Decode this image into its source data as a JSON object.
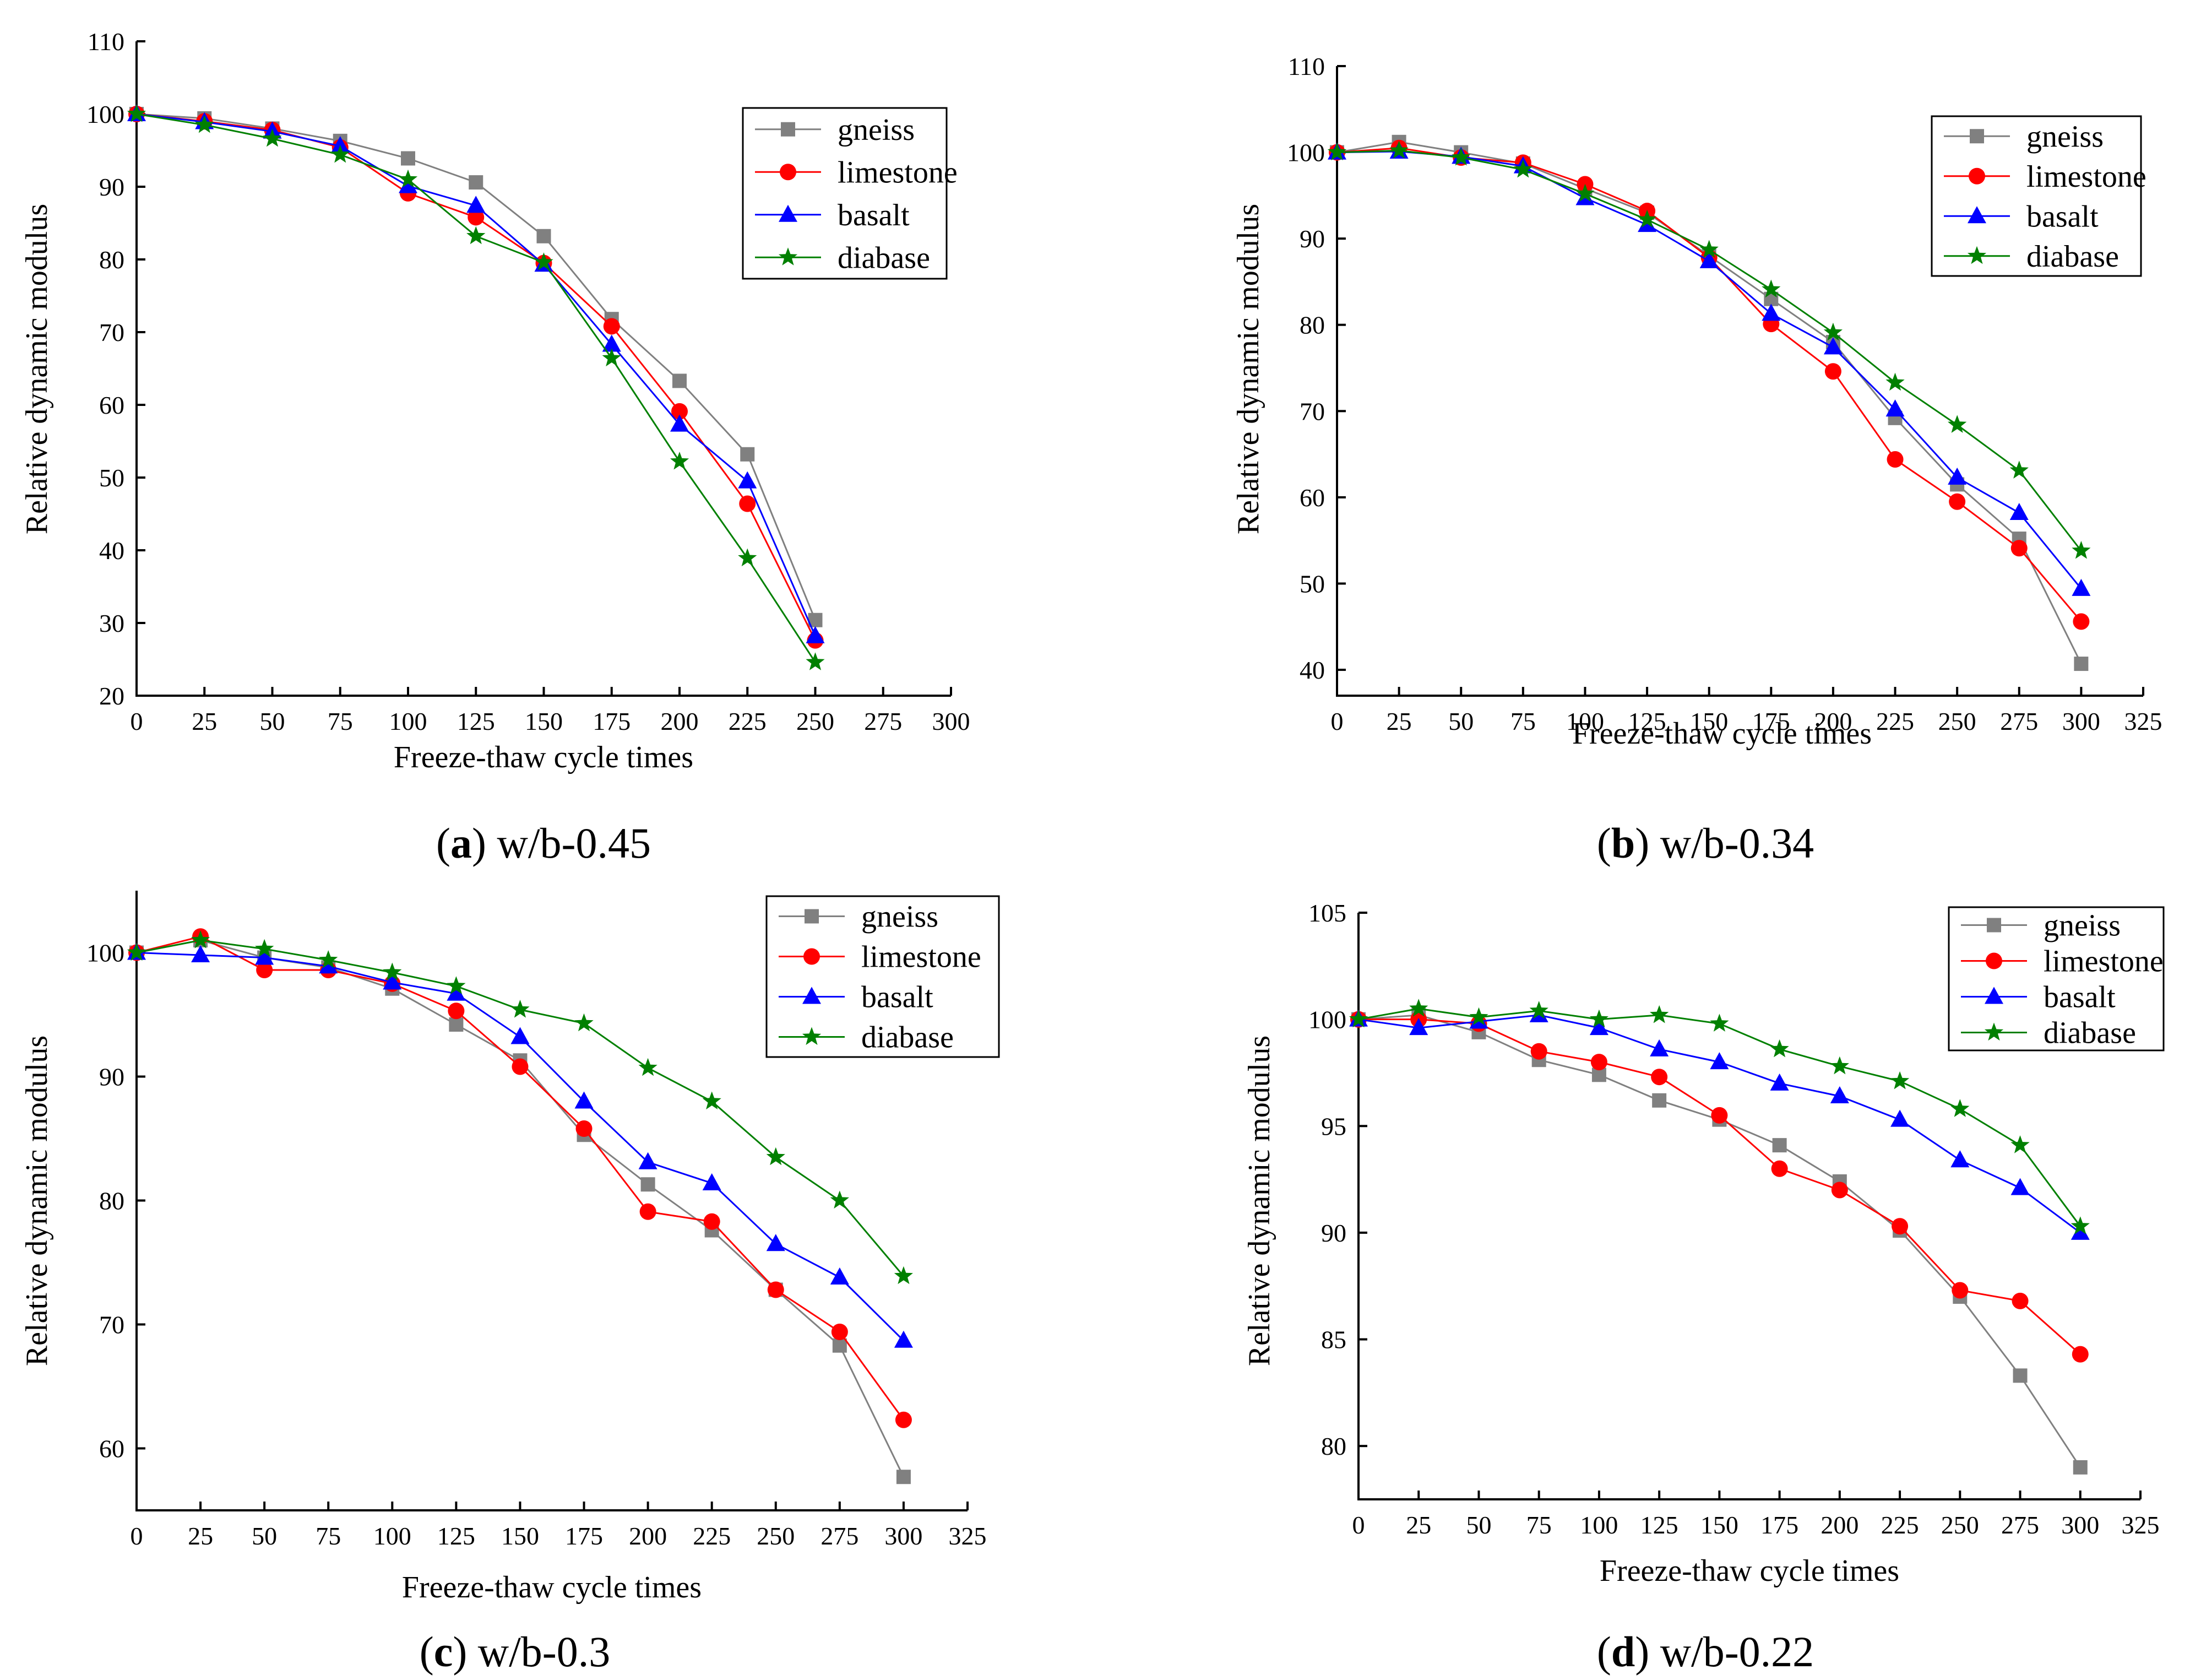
{
  "colors": {
    "gneiss": "#808080",
    "limestone": "#ff0000",
    "basalt": "#0000ff",
    "diabase": "#008000"
  },
  "markers": {
    "gneiss": "square",
    "limestone": "circle",
    "basalt": "triangle",
    "diabase": "star"
  },
  "chart_data": [
    {
      "type": "line",
      "panel": "a",
      "caption_letter": "a",
      "caption_text": "w/b-0.45",
      "title": "",
      "xlabel": "Freeze-thaw cycle times",
      "ylabel": "Relative dynamic modulus",
      "xlim": [
        0,
        300
      ],
      "ylim": [
        20,
        110
      ],
      "xticks": [
        0,
        25,
        50,
        75,
        100,
        125,
        150,
        175,
        200,
        225,
        250,
        275,
        300
      ],
      "yticks": [
        20,
        30,
        40,
        50,
        60,
        70,
        80,
        90,
        100,
        110
      ],
      "grid": false,
      "legend_position": "top-right",
      "x": [
        0,
        25,
        50,
        75,
        100,
        125,
        150,
        175,
        200,
        225,
        250
      ],
      "series": [
        {
          "name": "gneiss",
          "values": [
            100,
            99.4,
            98,
            96.3,
            93.9,
            90.6,
            83.2,
            71.8,
            63.3,
            53.2,
            30.4
          ]
        },
        {
          "name": "limestone",
          "values": [
            100,
            99,
            97.8,
            95.4,
            89.1,
            85.8,
            79.5,
            70.8,
            59.1,
            46.4,
            27.6
          ]
        },
        {
          "name": "basalt",
          "values": [
            100,
            98.9,
            97.6,
            95.6,
            90.1,
            87.4,
            79.3,
            68.3,
            57.3,
            49.5,
            28.2
          ]
        },
        {
          "name": "diabase",
          "values": [
            100,
            98.5,
            96.6,
            94.4,
            91,
            83.2,
            79.6,
            66.4,
            52.2,
            38.9,
            24.6
          ]
        }
      ]
    },
    {
      "type": "line",
      "panel": "b",
      "caption_letter": "b",
      "caption_text": "w/b-0.34",
      "title": "",
      "xlabel": "Freeze-thaw cycle times",
      "ylabel": "Relative dynamic modulus",
      "xlim": [
        0,
        325
      ],
      "ylim": [
        37,
        110
      ],
      "xticks": [
        0,
        25,
        50,
        75,
        100,
        125,
        150,
        175,
        200,
        225,
        250,
        275,
        300,
        325
      ],
      "yticks": [
        40,
        50,
        60,
        70,
        80,
        90,
        100,
        110
      ],
      "grid": false,
      "legend_position": "top-right",
      "x": [
        0,
        25,
        50,
        75,
        100,
        125,
        150,
        175,
        200,
        225,
        250,
        275,
        300
      ],
      "series": [
        {
          "name": "gneiss",
          "values": [
            100,
            101.2,
            100,
            98.7,
            95.8,
            93,
            88,
            83,
            78,
            69.2,
            61.5,
            55.2,
            40.7
          ]
        },
        {
          "name": "limestone",
          "values": [
            100,
            100.5,
            99.4,
            98.8,
            96.3,
            93.2,
            87.8,
            80.1,
            74.6,
            64.4,
            59.5,
            54.1,
            45.6
          ]
        },
        {
          "name": "basalt",
          "values": [
            100,
            100.1,
            99.5,
            98.4,
            94.7,
            91.6,
            87.4,
            81.3,
            77.4,
            70.2,
            62.3,
            58.2,
            49.4
          ]
        },
        {
          "name": "diabase",
          "values": [
            100,
            100.2,
            99.4,
            98,
            95.2,
            92.2,
            88.7,
            84.1,
            79.1,
            73.3,
            68.4,
            63.1,
            53.8
          ]
        }
      ]
    },
    {
      "type": "line",
      "panel": "c",
      "caption_letter": "c",
      "caption_text": "w/b-0.3",
      "title": "",
      "xlabel": "Freeze-thaw cycle times",
      "ylabel": "Relative dynamic modulus",
      "xlim": [
        0,
        325
      ],
      "ylim": [
        55,
        105
      ],
      "xticks": [
        0,
        25,
        50,
        75,
        100,
        125,
        150,
        175,
        200,
        225,
        250,
        275,
        300,
        325
      ],
      "yticks": [
        60,
        70,
        80,
        90,
        100
      ],
      "grid": false,
      "legend_position": "top-right",
      "x": [
        0,
        25,
        50,
        75,
        100,
        125,
        150,
        175,
        200,
        225,
        250,
        275,
        300
      ],
      "series": [
        {
          "name": "gneiss",
          "values": [
            100,
            101,
            99.6,
            98.8,
            97.1,
            94.2,
            91.3,
            85.3,
            81.3,
            77.6,
            72.8,
            68.3,
            57.7
          ]
        },
        {
          "name": "limestone",
          "values": [
            100,
            101.3,
            98.6,
            98.6,
            97.5,
            95.3,
            90.8,
            85.8,
            79.1,
            78.3,
            72.8,
            69.4,
            62.3
          ]
        },
        {
          "name": "basalt",
          "values": [
            100,
            99.8,
            99.6,
            98.9,
            97.6,
            96.7,
            93.2,
            88,
            83.1,
            81.4,
            76.5,
            73.8,
            68.7
          ]
        },
        {
          "name": "diabase",
          "values": [
            100,
            101,
            100.3,
            99.4,
            98.4,
            97.3,
            95.4,
            94.3,
            90.7,
            88,
            83.5,
            80,
            73.9
          ]
        }
      ]
    },
    {
      "type": "line",
      "panel": "d",
      "caption_letter": "d",
      "caption_text": "w/b-0.22",
      "title": "",
      "xlabel": "Freeze-thaw cycle times",
      "ylabel": "Relative dynamic modulus",
      "xlim": [
        0,
        325
      ],
      "ylim": [
        77.5,
        105
      ],
      "xticks": [
        0,
        25,
        50,
        75,
        100,
        125,
        150,
        175,
        200,
        225,
        250,
        275,
        300,
        325
      ],
      "yticks": [
        80,
        85,
        90,
        95,
        100,
        105
      ],
      "grid": false,
      "legend_position": "top-right",
      "x": [
        0,
        25,
        50,
        75,
        100,
        125,
        150,
        175,
        200,
        225,
        250,
        275,
        300
      ],
      "series": [
        {
          "name": "gneiss",
          "values": [
            100,
            100.2,
            99.4,
            98.1,
            97.4,
            96.2,
            95.3,
            94.1,
            92.4,
            90.1,
            87,
            83.3,
            79
          ]
        },
        {
          "name": "limestone",
          "values": [
            100,
            100,
            99.8,
            98.5,
            98,
            97.3,
            95.5,
            93,
            92,
            90.3,
            87.3,
            86.8,
            84.3
          ]
        },
        {
          "name": "basalt",
          "values": [
            100,
            99.6,
            99.9,
            100.2,
            99.6,
            98.6,
            98,
            97,
            96.4,
            95.3,
            93.4,
            92.1,
            90
          ]
        },
        {
          "name": "diabase",
          "values": [
            100,
            100.5,
            100.1,
            100.4,
            100,
            100.2,
            99.8,
            98.6,
            97.8,
            97.1,
            95.8,
            94.1,
            90.3
          ]
        }
      ]
    }
  ]
}
